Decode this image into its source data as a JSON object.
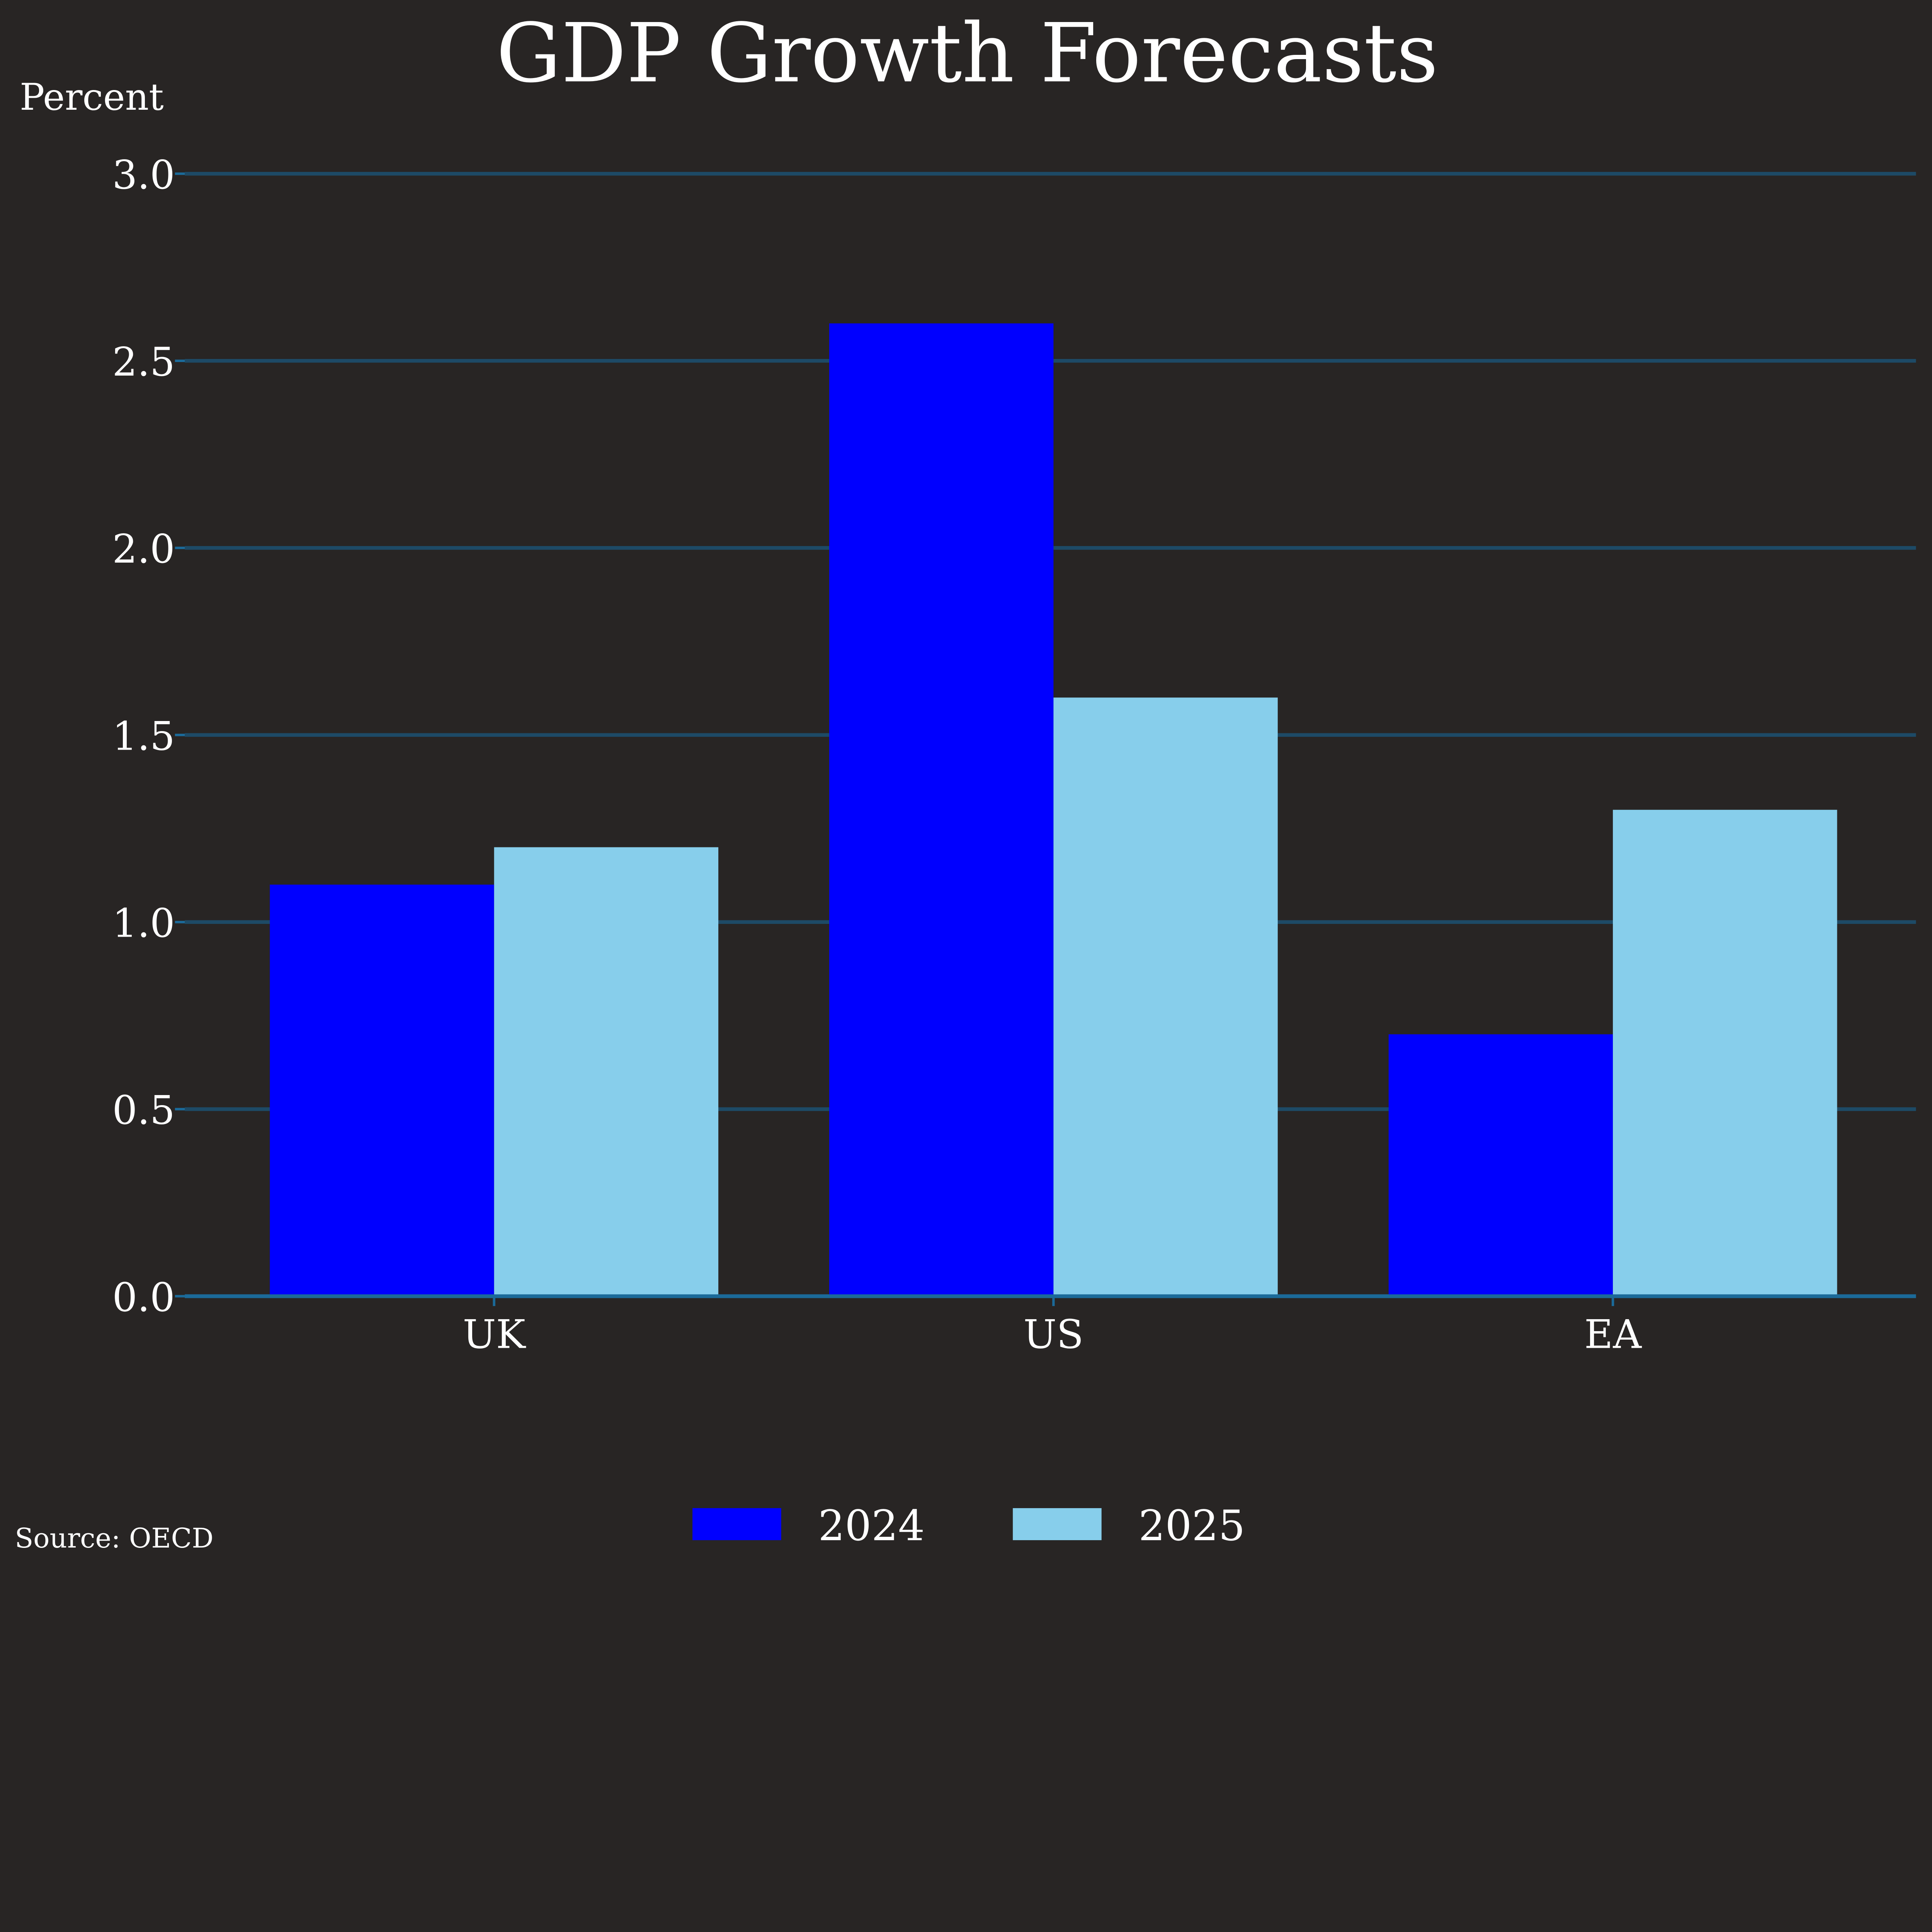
{
  "chart_data": {
    "type": "bar",
    "title": "GDP Growth Forecasts",
    "ylabel": "Percent",
    "xlabel": "",
    "categories": [
      "UK",
      "US",
      "EA"
    ],
    "series": [
      {
        "name": "2024",
        "values": [
          1.1,
          2.6,
          0.7
        ],
        "color": "#0000ff"
      },
      {
        "name": "2025",
        "values": [
          1.2,
          1.6,
          1.3
        ],
        "color": "#87ceeb"
      }
    ],
    "ylim": [
      0,
      3.0
    ],
    "yticks": [
      "0.0",
      "0.5",
      "1.0",
      "1.5",
      "2.0",
      "2.5",
      "3.0"
    ],
    "grid": true,
    "legend_position": "bottom-center",
    "source": "Source: OECD"
  },
  "colors": {
    "background": "#282524",
    "grid": "#1d4a66",
    "axis": "#1b6a99"
  }
}
